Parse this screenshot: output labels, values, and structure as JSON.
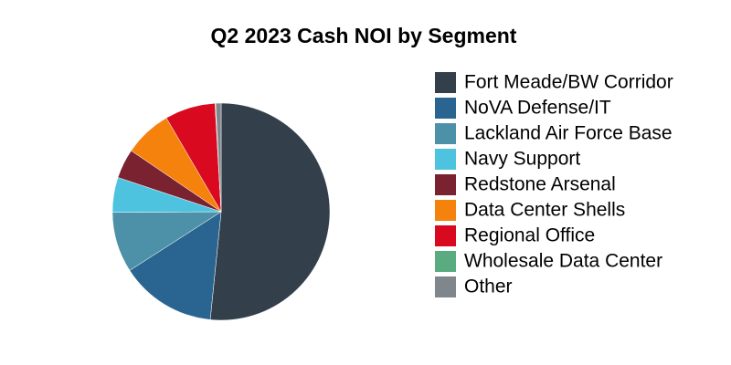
{
  "chart_data": {
    "type": "pie",
    "title": "Q2 2023 Cash NOI by Segment",
    "categories": [
      "Fort Meade/BW Corridor",
      "NoVA Defense/IT",
      "Lackland Air Force Base",
      "Navy Support",
      "Redstone Arsenal",
      "Data Center Shells",
      "Regional Office",
      "Wholesale Data Center",
      "Other"
    ],
    "values": [
      51.6,
      14.3,
      9.0,
      5.2,
      4.4,
      7.1,
      7.5,
      0.1,
      0.8
    ],
    "colors": [
      "#333f4b",
      "#2a6591",
      "#4d91a8",
      "#4dc3e0",
      "#7a2230",
      "#f5820c",
      "#d9091f",
      "#5aab7f",
      "#80878c"
    ],
    "legend": "right"
  }
}
